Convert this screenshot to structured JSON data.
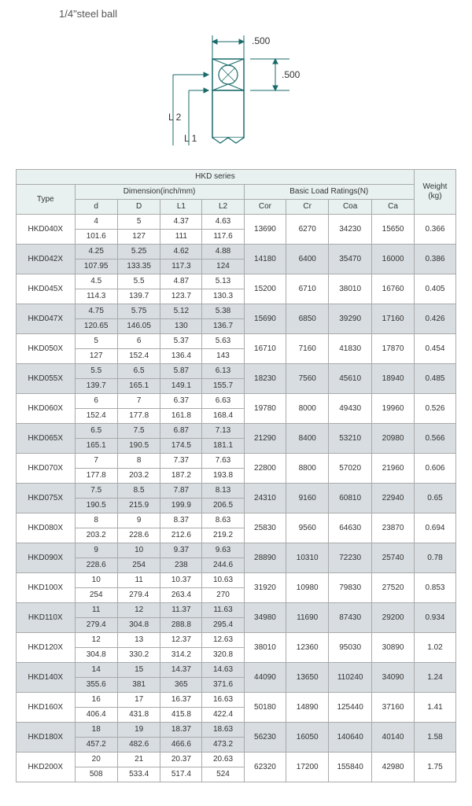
{
  "title": "1/4\"steel ball",
  "diagram": {
    "width_label": ".500",
    "height_label": ".500",
    "L1": "L 1",
    "L2": "L 2"
  },
  "table": {
    "series_header": "HKD series",
    "type_header": "Type",
    "dim_header": "Dimension(inch/mm)",
    "load_header": "Basic Load Ratings(N)",
    "weight_header": "Weight (kg)",
    "columns": [
      "d",
      "D",
      "L1",
      "L2",
      "Cor",
      "Cr",
      "Coa",
      "Ca"
    ],
    "rows": [
      {
        "type": "HKD040X",
        "d": [
          "4",
          "101.6"
        ],
        "D": [
          "5",
          "127"
        ],
        "L1": [
          "4.37",
          "111"
        ],
        "L2": [
          "4.63",
          "117.6"
        ],
        "Cor": "13690",
        "Cr": "6270",
        "Coa": "34230",
        "Ca": "15650",
        "W": "0.366",
        "shaded": false
      },
      {
        "type": "HKD042X",
        "d": [
          "4.25",
          "107.95"
        ],
        "D": [
          "5.25",
          "133.35"
        ],
        "L1": [
          "4.62",
          "117.3"
        ],
        "L2": [
          "4.88",
          "124"
        ],
        "Cor": "14180",
        "Cr": "6400",
        "Coa": "35470",
        "Ca": "16000",
        "W": "0.386",
        "shaded": true
      },
      {
        "type": "HKD045X",
        "d": [
          "4.5",
          "114.3"
        ],
        "D": [
          "5.5",
          "139.7"
        ],
        "L1": [
          "4.87",
          "123.7"
        ],
        "L2": [
          "5.13",
          "130.3"
        ],
        "Cor": "15200",
        "Cr": "6710",
        "Coa": "38010",
        "Ca": "16760",
        "W": "0.405",
        "shaded": false
      },
      {
        "type": "HKD047X",
        "d": [
          "4.75",
          "120.65"
        ],
        "D": [
          "5.75",
          "146.05"
        ],
        "L1": [
          "5.12",
          "130"
        ],
        "L2": [
          "5.38",
          "136.7"
        ],
        "Cor": "15690",
        "Cr": "6850",
        "Coa": "39290",
        "Ca": "17160",
        "W": "0.426",
        "shaded": true
      },
      {
        "type": "HKD050X",
        "d": [
          "5",
          "127"
        ],
        "D": [
          "6",
          "152.4"
        ],
        "L1": [
          "5.37",
          "136.4"
        ],
        "L2": [
          "5.63",
          "143"
        ],
        "Cor": "16710",
        "Cr": "7160",
        "Coa": "41830",
        "Ca": "17870",
        "W": "0.454",
        "shaded": false
      },
      {
        "type": "HKD055X",
        "d": [
          "5.5",
          "139.7"
        ],
        "D": [
          "6.5",
          "165.1"
        ],
        "L1": [
          "5.87",
          "149.1"
        ],
        "L2": [
          "6.13",
          "155.7"
        ],
        "Cor": "18230",
        "Cr": "7560",
        "Coa": "45610",
        "Ca": "18940",
        "W": "0.485",
        "shaded": true
      },
      {
        "type": "HKD060X",
        "d": [
          "6",
          "152.4"
        ],
        "D": [
          "7",
          "177.8"
        ],
        "L1": [
          "6.37",
          "161.8"
        ],
        "L2": [
          "6.63",
          "168.4"
        ],
        "Cor": "19780",
        "Cr": "8000",
        "Coa": "49430",
        "Ca": "19960",
        "W": "0.526",
        "shaded": false
      },
      {
        "type": "HKD065X",
        "d": [
          "6.5",
          "165.1"
        ],
        "D": [
          "7.5",
          "190.5"
        ],
        "L1": [
          "6.87",
          "174.5"
        ],
        "L2": [
          "7.13",
          "181.1"
        ],
        "Cor": "21290",
        "Cr": "8400",
        "Coa": "53210",
        "Ca": "20980",
        "W": "0.566",
        "shaded": true
      },
      {
        "type": "HKD070X",
        "d": [
          "7",
          "177.8"
        ],
        "D": [
          "8",
          "203.2"
        ],
        "L1": [
          "7.37",
          "187.2"
        ],
        "L2": [
          "7.63",
          "193.8"
        ],
        "Cor": "22800",
        "Cr": "8800",
        "Coa": "57020",
        "Ca": "21960",
        "W": "0.606",
        "shaded": false
      },
      {
        "type": "HKD075X",
        "d": [
          "7.5",
          "190.5"
        ],
        "D": [
          "8.5",
          "215.9"
        ],
        "L1": [
          "7.87",
          "199.9"
        ],
        "L2": [
          "8.13",
          "206.5"
        ],
        "Cor": "24310",
        "Cr": "9160",
        "Coa": "60810",
        "Ca": "22940",
        "W": "0.65",
        "shaded": true
      },
      {
        "type": "HKD080X",
        "d": [
          "8",
          "203.2"
        ],
        "D": [
          "9",
          "228.6"
        ],
        "L1": [
          "8.37",
          "212.6"
        ],
        "L2": [
          "8.63",
          "219.2"
        ],
        "Cor": "25830",
        "Cr": "9560",
        "Coa": "64630",
        "Ca": "23870",
        "W": "0.694",
        "shaded": false
      },
      {
        "type": "HKD090X",
        "d": [
          "9",
          "228.6"
        ],
        "D": [
          "10",
          "254"
        ],
        "L1": [
          "9.37",
          "238"
        ],
        "L2": [
          "9.63",
          "244.6"
        ],
        "Cor": "28890",
        "Cr": "10310",
        "Coa": "72230",
        "Ca": "25740",
        "W": "0.78",
        "shaded": true
      },
      {
        "type": "HKD100X",
        "d": [
          "10",
          "254"
        ],
        "D": [
          "11",
          "279.4"
        ],
        "L1": [
          "10.37",
          "263.4"
        ],
        "L2": [
          "10.63",
          "270"
        ],
        "Cor": "31920",
        "Cr": "10980",
        "Coa": "79830",
        "Ca": "27520",
        "W": "0.853",
        "shaded": false
      },
      {
        "type": "HKD110X",
        "d": [
          "11",
          "279.4"
        ],
        "D": [
          "12",
          "304.8"
        ],
        "L1": [
          "11.37",
          "288.8"
        ],
        "L2": [
          "11.63",
          "295.4"
        ],
        "Cor": "34980",
        "Cr": "11690",
        "Coa": "87430",
        "Ca": "29200",
        "W": "0.934",
        "shaded": true
      },
      {
        "type": "HKD120X",
        "d": [
          "12",
          "304.8"
        ],
        "D": [
          "13",
          "330.2"
        ],
        "L1": [
          "12.37",
          "314.2"
        ],
        "L2": [
          "12.63",
          "320.8"
        ],
        "Cor": "38010",
        "Cr": "12360",
        "Coa": "95030",
        "Ca": "30890",
        "W": "1.02",
        "shaded": false
      },
      {
        "type": "HKD140X",
        "d": [
          "14",
          "355.6"
        ],
        "D": [
          "15",
          "381"
        ],
        "L1": [
          "14.37",
          "365"
        ],
        "L2": [
          "14.63",
          "371.6"
        ],
        "Cor": "44090",
        "Cr": "13650",
        "Coa": "110240",
        "Ca": "34090",
        "W": "1.24",
        "shaded": true
      },
      {
        "type": "HKD160X",
        "d": [
          "16",
          "406.4"
        ],
        "D": [
          "17",
          "431.8"
        ],
        "L1": [
          "16.37",
          "415.8"
        ],
        "L2": [
          "16.63",
          "422.4"
        ],
        "Cor": "50180",
        "Cr": "14890",
        "Coa": "125440",
        "Ca": "37160",
        "W": "1.41",
        "shaded": false
      },
      {
        "type": "HKD180X",
        "d": [
          "18",
          "457.2"
        ],
        "D": [
          "19",
          "482.6"
        ],
        "L1": [
          "18.37",
          "466.6"
        ],
        "L2": [
          "18.63",
          "473.2"
        ],
        "Cor": "56230",
        "Cr": "16050",
        "Coa": "140640",
        "Ca": "40140",
        "W": "1.58",
        "shaded": true
      },
      {
        "type": "HKD200X",
        "d": [
          "20",
          "508"
        ],
        "D": [
          "21",
          "533.4"
        ],
        "L1": [
          "20.37",
          "517.4"
        ],
        "L2": [
          "20.63",
          "524"
        ],
        "Cor": "62320",
        "Cr": "17200",
        "Coa": "155840",
        "Ca": "42980",
        "W": "1.75",
        "shaded": false
      }
    ]
  }
}
